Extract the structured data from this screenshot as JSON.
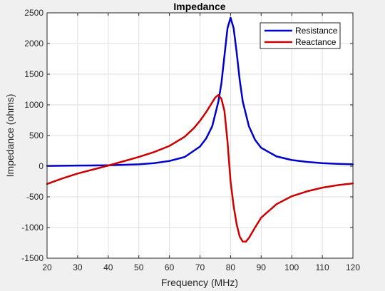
{
  "chart_data": {
    "type": "line",
    "title": "Impedance",
    "xlabel": "Frequency (MHz)",
    "ylabel": "Impedance (ohms)",
    "xlim": [
      20,
      120
    ],
    "ylim": [
      -1500,
      2500
    ],
    "xticks": [
      20,
      30,
      40,
      50,
      60,
      70,
      80,
      90,
      100,
      110,
      120
    ],
    "yticks": [
      -1500,
      -1000,
      -500,
      0,
      500,
      1000,
      1500,
      2000,
      2500
    ],
    "grid": true,
    "legend_position": "top-right",
    "series": [
      {
        "name": "Resistance",
        "color": "#0000cc",
        "x": [
          20,
          30,
          40,
          50,
          55,
          60,
          65,
          70,
          72,
          74,
          76,
          77,
          78,
          79,
          80,
          81,
          82,
          83,
          84,
          86,
          88,
          90,
          95,
          100,
          105,
          110,
          115,
          120
        ],
        "y": [
          5,
          10,
          15,
          30,
          50,
          85,
          150,
          320,
          450,
          650,
          1050,
          1350,
          1800,
          2250,
          2420,
          2250,
          1850,
          1400,
          1050,
          650,
          430,
          300,
          160,
          100,
          70,
          50,
          38,
          30
        ]
      },
      {
        "name": "Reactance",
        "color": "#cc0000",
        "x": [
          20,
          25,
          30,
          35,
          40,
          45,
          50,
          55,
          60,
          65,
          68,
          70,
          72,
          74,
          75,
          76,
          77,
          78,
          79,
          80,
          81,
          82,
          83,
          84,
          85,
          86,
          88,
          90,
          95,
          100,
          105,
          110,
          115,
          120
        ],
        "y": [
          -290,
          -200,
          -120,
          -55,
          10,
          80,
          150,
          230,
          330,
          480,
          620,
          740,
          880,
          1040,
          1120,
          1160,
          1100,
          900,
          400,
          -250,
          -650,
          -950,
          -1150,
          -1230,
          -1230,
          -1170,
          -1000,
          -840,
          -620,
          -490,
          -410,
          -350,
          -310,
          -280
        ]
      }
    ]
  }
}
